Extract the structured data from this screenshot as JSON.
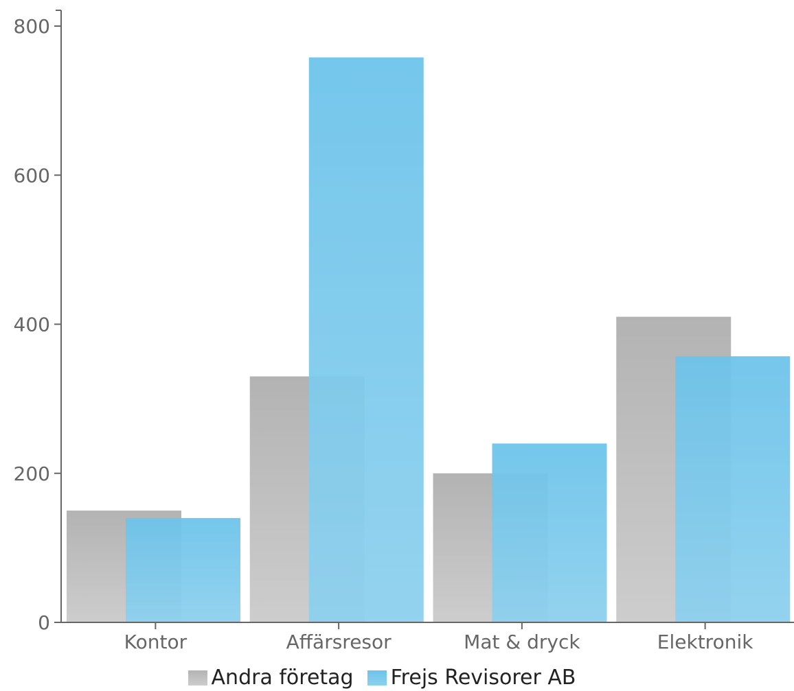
{
  "chart_data": {
    "type": "bar",
    "title": "",
    "xlabel": "",
    "ylabel": "",
    "categories": [
      "Kontor",
      "Affärsresor",
      "Mat & dryck",
      "Elektronik"
    ],
    "series": [
      {
        "name": "Andra företag",
        "values": [
          150,
          330,
          200,
          410
        ],
        "color": "#b8b8b8"
      },
      {
        "name": "Frejs Revisorer AB",
        "values": [
          140,
          758,
          240,
          357
        ],
        "color": "#6fc4ea"
      }
    ],
    "ylim": [
      0,
      800
    ],
    "yticks": [
      0,
      200,
      400,
      600,
      800
    ],
    "grid": false,
    "legend_position": "bottom"
  },
  "legend": {
    "items": [
      {
        "label": "Andra företag",
        "color": "#b8b8b8"
      },
      {
        "label": "Frejs Revisorer AB",
        "color": "#6fc4ea"
      }
    ]
  }
}
